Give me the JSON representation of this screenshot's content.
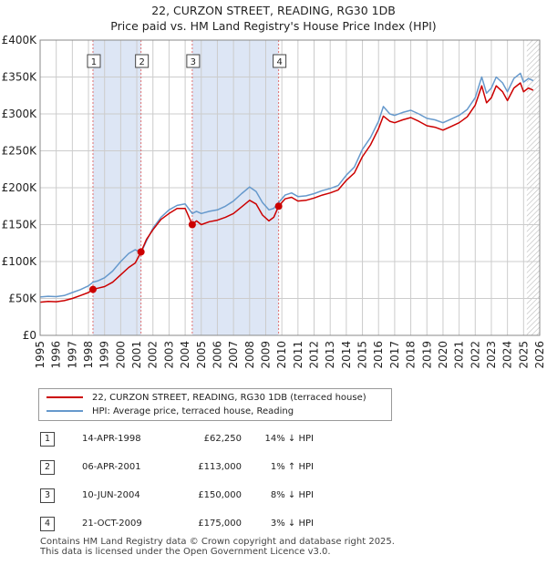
{
  "header": {
    "title_line1": "22, CURZON STREET, READING, RG30 1DB",
    "title_line2": "Price paid vs. HM Land Registry's House Price Index (HPI)"
  },
  "colors": {
    "price_line": "#cc0000",
    "hpi_line": "#6699cc",
    "shade": "#dde6f5",
    "grid": "#cccccc"
  },
  "chart_data": {
    "type": "line",
    "title": "22, CURZON STREET, READING, RG30 1DB",
    "subtitle": "Price paid vs. HM Land Registry's House Price Index (HPI)",
    "xlabel": "",
    "ylabel": "",
    "xlim": [
      1995,
      2026
    ],
    "ylim": [
      0,
      400000
    ],
    "y_ticks": [
      {
        "value": 0,
        "label": "£0"
      },
      {
        "value": 50000,
        "label": "£50K"
      },
      {
        "value": 100000,
        "label": "£100K"
      },
      {
        "value": 150000,
        "label": "£150K"
      },
      {
        "value": 200000,
        "label": "£200K"
      },
      {
        "value": 250000,
        "label": "£250K"
      },
      {
        "value": 300000,
        "label": "£300K"
      },
      {
        "value": 350000,
        "label": "£350K"
      },
      {
        "value": 400000,
        "label": "£400K"
      }
    ],
    "x_ticks": [
      "1995",
      "1996",
      "1997",
      "1998",
      "1999",
      "2000",
      "2001",
      "2002",
      "2003",
      "2004",
      "2005",
      "2006",
      "2007",
      "2008",
      "2009",
      "2010",
      "2011",
      "2012",
      "2013",
      "2014",
      "2015",
      "2016",
      "2017",
      "2018",
      "2019",
      "2020",
      "2021",
      "2022",
      "2023",
      "2024",
      "2025",
      "2026"
    ],
    "grid": true,
    "shaded_periods": [
      [
        1998.28,
        2001.26
      ],
      [
        2004.44,
        2009.8
      ]
    ],
    "hatched_from": 2025.2,
    "series": [
      {
        "name": "22, CURZON STREET, READING, RG30 1DB (terraced house)",
        "x": [
          1995.0,
          1995.5,
          1996.0,
          1996.5,
          1997.0,
          1997.5,
          1998.0,
          1998.28,
          1998.6,
          1999.0,
          1999.5,
          2000.0,
          2000.5,
          2000.9,
          2001.26,
          2001.6,
          2002.0,
          2002.5,
          2003.0,
          2003.5,
          2004.0,
          2004.44,
          2004.7,
          2005.0,
          2005.5,
          2006.0,
          2006.5,
          2007.0,
          2007.5,
          2008.0,
          2008.4,
          2008.8,
          2009.2,
          2009.5,
          2009.8,
          2010.2,
          2010.6,
          2011.0,
          2011.5,
          2012.0,
          2012.5,
          2013.0,
          2013.5,
          2014.0,
          2014.5,
          2015.0,
          2015.5,
          2016.0,
          2016.3,
          2016.7,
          2017.0,
          2017.5,
          2018.0,
          2018.5,
          2019.0,
          2019.5,
          2020.0,
          2020.5,
          2021.0,
          2021.5,
          2022.0,
          2022.4,
          2022.7,
          2023.0,
          2023.3,
          2023.7,
          2024.0,
          2024.4,
          2024.8,
          2025.0,
          2025.3,
          2025.6
        ],
        "values": [
          45000,
          46000,
          45500,
          47000,
          50000,
          54000,
          58000,
          62250,
          64000,
          66000,
          72000,
          82000,
          92000,
          98000,
          113000,
          130000,
          143000,
          157000,
          165000,
          172000,
          172000,
          150000,
          155000,
          150000,
          154000,
          156000,
          160000,
          165000,
          174000,
          183000,
          178000,
          163000,
          155000,
          160000,
          175000,
          185000,
          187000,
          182000,
          183000,
          186000,
          190000,
          193000,
          197000,
          210000,
          220000,
          242000,
          258000,
          280000,
          297000,
          290000,
          288000,
          292000,
          295000,
          290000,
          284000,
          282000,
          278000,
          283000,
          288000,
          296000,
          312000,
          338000,
          315000,
          322000,
          338000,
          330000,
          318000,
          335000,
          342000,
          330000,
          335000,
          332000
        ]
      },
      {
        "name": "HPI: Average price, terraced house, Reading",
        "x": [
          1995.0,
          1995.5,
          1996.0,
          1996.5,
          1997.0,
          1997.5,
          1998.0,
          1998.28,
          1998.6,
          1999.0,
          1999.5,
          2000.0,
          2000.5,
          2000.9,
          2001.26,
          2001.6,
          2002.0,
          2002.5,
          2003.0,
          2003.5,
          2004.0,
          2004.44,
          2004.7,
          2005.0,
          2005.5,
          2006.0,
          2006.5,
          2007.0,
          2007.5,
          2008.0,
          2008.4,
          2008.8,
          2009.2,
          2009.5,
          2009.8,
          2010.2,
          2010.6,
          2011.0,
          2011.5,
          2012.0,
          2012.5,
          2013.0,
          2013.5,
          2014.0,
          2014.5,
          2015.0,
          2015.5,
          2016.0,
          2016.3,
          2016.7,
          2017.0,
          2017.5,
          2018.0,
          2018.5,
          2019.0,
          2019.5,
          2020.0,
          2020.5,
          2021.0,
          2021.5,
          2022.0,
          2022.4,
          2022.7,
          2023.0,
          2023.3,
          2023.7,
          2024.0,
          2024.4,
          2024.8,
          2025.0,
          2025.3,
          2025.6
        ],
        "values": [
          52000,
          53000,
          52500,
          54000,
          58000,
          62000,
          67000,
          72000,
          74000,
          78000,
          87000,
          100000,
          111000,
          116000,
          112000,
          128000,
          145000,
          160000,
          170000,
          176000,
          178000,
          165000,
          168000,
          165000,
          168000,
          170000,
          175000,
          182000,
          192000,
          201000,
          195000,
          180000,
          170000,
          172000,
          180000,
          190000,
          193000,
          188000,
          189000,
          192000,
          196000,
          199000,
          203000,
          217000,
          228000,
          252000,
          268000,
          290000,
          310000,
          300000,
          298000,
          302000,
          305000,
          300000,
          294000,
          292000,
          288000,
          293000,
          298000,
          306000,
          322000,
          350000,
          328000,
          335000,
          350000,
          342000,
          330000,
          348000,
          355000,
          343000,
          348000,
          345000
        ]
      }
    ],
    "sales": [
      {
        "n": "1",
        "x": 1998.28,
        "y": 62250
      },
      {
        "n": "2",
        "x": 2001.26,
        "y": 113000
      },
      {
        "n": "3",
        "x": 2004.44,
        "y": 150000
      },
      {
        "n": "4",
        "x": 2009.8,
        "y": 175000
      }
    ]
  },
  "legend": {
    "price_label": "22, CURZON STREET, READING, RG30 1DB (terraced house)",
    "hpi_label": "HPI: Average price, terraced house, Reading"
  },
  "sales_table": [
    {
      "n": "1",
      "date": "14-APR-1998",
      "price": "£62,250",
      "hpi": "14% ↓ HPI"
    },
    {
      "n": "2",
      "date": "06-APR-2001",
      "price": "£113,000",
      "hpi": "1% ↑ HPI"
    },
    {
      "n": "3",
      "date": "10-JUN-2004",
      "price": "£150,000",
      "hpi": "8% ↓ HPI"
    },
    {
      "n": "4",
      "date": "21-OCT-2009",
      "price": "£175,000",
      "hpi": "3% ↓ HPI"
    }
  ],
  "footer": {
    "line1": "Contains HM Land Registry data © Crown copyright and database right 2025.",
    "line2": "This data is licensed under the Open Government Licence v3.0."
  }
}
